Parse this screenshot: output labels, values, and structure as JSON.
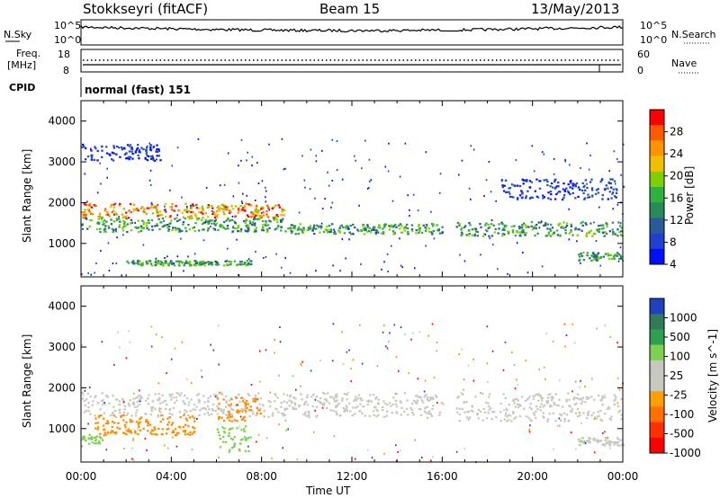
{
  "header": {
    "station": "Stokkseyri (fitACF)",
    "beam": "Beam 15",
    "date": "13/May/2013"
  },
  "nsky_panel": {
    "label": "N.Sky",
    "right_label": "N.Search",
    "tick_high": "10^5",
    "tick_low": "10^0"
  },
  "freq_panel": {
    "label_line1": "Freq.",
    "label_line2": "[MHz]",
    "left_ticks": [
      "18",
      "8"
    ],
    "right_ticks": [
      "60",
      "0"
    ],
    "right_label": "Nave"
  },
  "cpid_panel": {
    "label": "CPID",
    "value": "normal (fast) 151"
  },
  "axes": {
    "ylabel": "Slant Range [km]",
    "yticks": [
      "4000",
      "3000",
      "2000",
      "1000"
    ],
    "xlabel": "Time UT",
    "xticks": [
      "00:00",
      "04:00",
      "08:00",
      "12:00",
      "16:00",
      "20:00",
      "00:00"
    ]
  },
  "power_colorbar": {
    "label": "Power [dB]",
    "ticks": [
      "28",
      "24",
      "20",
      "16",
      "12",
      "8",
      "4"
    ],
    "colors": [
      "#ff0000",
      "#ff5a00",
      "#ff9400",
      "#f0c000",
      "#7fd000",
      "#30b040",
      "#2a8a5a",
      "#2a5a9a",
      "#2040d0",
      "#0010ff"
    ]
  },
  "velocity_colorbar": {
    "label": "Velocity [m s^-1]",
    "ticks": [
      "1000",
      "500",
      "100",
      "25",
      "-25",
      "-100",
      "-500",
      "-1000"
    ],
    "colors": [
      "#2040c0",
      "#2f7a5a",
      "#2fa050",
      "#7ed050",
      "#c8c8c0",
      "#c8c8c0",
      "#ffa000",
      "#ff7000",
      "#ff3000",
      "#ff0000"
    ]
  },
  "chart_data": {
    "type": "heatmap",
    "x_range_hours": [
      0,
      24
    ],
    "y_range_km": [
      180,
      4500
    ],
    "data_gap_hours": [
      16.0,
      16.6
    ],
    "power_bands": [
      {
        "t_start": 0.0,
        "t_end": 3.5,
        "range_km": [
          3050,
          3450
        ],
        "level": "low"
      },
      {
        "t_start": 0.0,
        "t_end": 9.0,
        "range_km": [
          1650,
          2000
        ],
        "level": "high"
      },
      {
        "t_start": 0.0,
        "t_end": 9.0,
        "range_km": [
          1300,
          1650
        ],
        "level": "mid"
      },
      {
        "t_start": 9.0,
        "t_end": 16.0,
        "range_km": [
          1250,
          1500
        ],
        "level": "mid"
      },
      {
        "t_start": 16.6,
        "t_end": 24.0,
        "range_km": [
          1200,
          1550
        ],
        "level": "mid"
      },
      {
        "t_start": 18.5,
        "t_end": 24.0,
        "range_km": [
          2100,
          2600
        ],
        "level": "low"
      },
      {
        "t_start": 22.0,
        "t_end": 24.0,
        "range_km": [
          600,
          800
        ],
        "level": "mid"
      },
      {
        "t_start": 2.0,
        "t_end": 7.5,
        "range_km": [
          480,
          600
        ],
        "level": "mid"
      }
    ],
    "velocity_bands": [
      {
        "t_start": 0.0,
        "t_end": 16.0,
        "range_km": [
          1300,
          1900
        ],
        "class": "-25..25"
      },
      {
        "t_start": 16.6,
        "t_end": 24.0,
        "range_km": [
          1200,
          1900
        ],
        "class": "-25..25"
      },
      {
        "t_start": 0.5,
        "t_end": 5.0,
        "range_km": [
          850,
          1350
        ],
        "class": "-100..-500"
      },
      {
        "t_start": 6.0,
        "t_end": 8.0,
        "range_km": [
          1200,
          1800
        ],
        "class": "-100..-500"
      },
      {
        "t_start": 6.0,
        "t_end": 7.5,
        "range_km": [
          450,
          1100
        ],
        "class": "25..100"
      },
      {
        "t_start": 0.0,
        "t_end": 1.0,
        "range_km": [
          650,
          900
        ],
        "class": "25..100"
      },
      {
        "t_start": 22.0,
        "t_end": 24.0,
        "range_km": [
          600,
          800
        ],
        "class": "-25..25"
      }
    ]
  }
}
